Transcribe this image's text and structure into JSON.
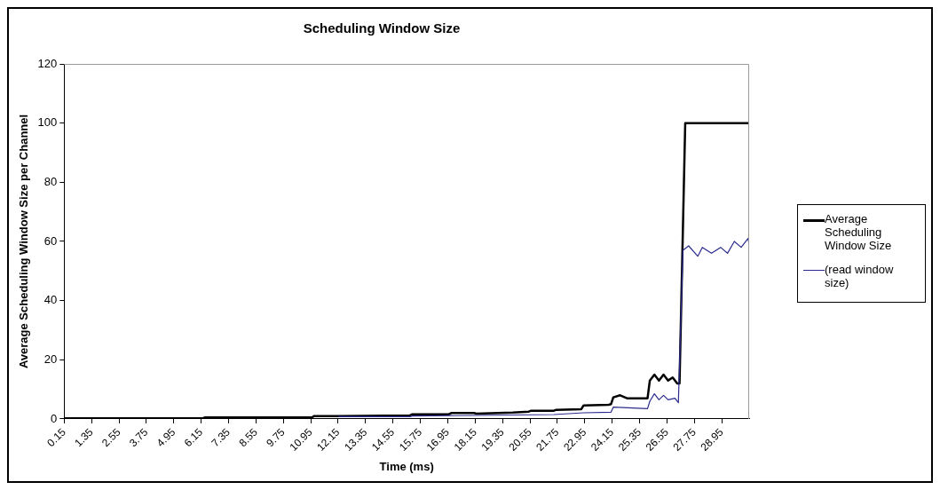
{
  "chart_data": {
    "type": "line",
    "title": "Scheduling Window Size",
    "xlabel": "Time (ms)",
    "ylabel": "Average Scheduling Window Size per Channel",
    "xlim": [
      0.15,
      30.15
    ],
    "xticks": [
      0.15,
      1.35,
      2.55,
      3.75,
      4.95,
      6.15,
      7.35,
      8.55,
      9.75,
      10.95,
      12.15,
      13.35,
      14.55,
      15.75,
      16.95,
      18.15,
      19.35,
      20.55,
      21.75,
      22.95,
      24.15,
      25.35,
      26.55,
      27.75,
      28.95
    ],
    "ylim": [
      0,
      120
    ],
    "yticks": [
      0,
      20,
      40,
      60,
      80,
      100,
      120
    ],
    "grid": false,
    "legend": "right",
    "marker": "none",
    "line_style": "solid",
    "series": [
      {
        "name": "Average Scheduling Window Size",
        "color": "#000000",
        "x": [
          0.15,
          6.2,
          6.3,
          11.0,
          11.1,
          12.15,
          15.3,
          15.4,
          17.0,
          17.1,
          18.1,
          18.2,
          19.8,
          20.5,
          20.6,
          21.6,
          21.7,
          22.8,
          22.9,
          24.0,
          24.1,
          24.2,
          24.5,
          24.8,
          25.7,
          25.8,
          26.0,
          26.2,
          26.4,
          26.6,
          26.8,
          27.0,
          27.1,
          27.35,
          30.15
        ],
        "values": [
          0.2,
          0.2,
          0.5,
          0.5,
          1,
          1,
          1.2,
          1.6,
          1.6,
          2,
          2,
          1.8,
          2.2,
          2.5,
          2.8,
          2.8,
          3.1,
          3.3,
          4.6,
          4.8,
          5,
          7.3,
          8,
          7,
          7,
          13,
          15,
          13,
          15,
          13,
          14,
          12,
          12,
          100,
          100
        ]
      },
      {
        "name": "(read window size)",
        "color": "#2b2b8f",
        "x": [
          12.15,
          15.3,
          15.4,
          18.1,
          21.6,
          22.9,
          24.1,
          24.2,
          25.7,
          25.8,
          26.0,
          26.2,
          26.4,
          26.6,
          26.9,
          27.05,
          27.25,
          27.5,
          27.9,
          28.1,
          28.5,
          28.9,
          29.2,
          29.5,
          29.8,
          30.1,
          30.15
        ],
        "values": [
          0.8,
          0.8,
          1,
          1.2,
          1.5,
          2.1,
          2.3,
          4,
          3.5,
          6,
          8.5,
          6.5,
          8,
          6.5,
          7,
          5.5,
          57,
          58.5,
          55,
          58,
          56,
          58,
          56,
          60,
          58,
          61,
          59
        ]
      }
    ]
  }
}
